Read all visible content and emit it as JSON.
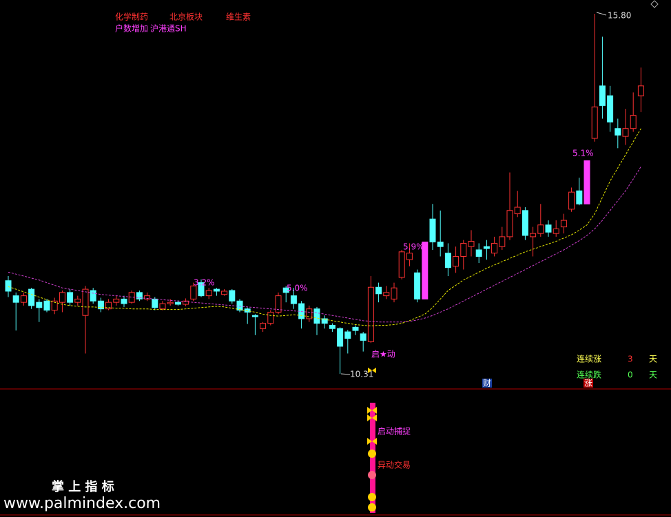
{
  "chart_data": {
    "type": "candlestick",
    "tags": [
      "化学制药",
      "北京板块",
      "维生素"
    ],
    "tags2": [
      "户数增加",
      "沪港通SH"
    ],
    "high_label": "15.80",
    "low_label": "10.31",
    "annotations": [
      "3.2%",
      "5.0%",
      "5.9%",
      "5.1%"
    ],
    "start_label": "启★动",
    "signals": [
      "启动捕捉",
      "异动交易"
    ],
    "streak_up": {
      "label": "连续涨",
      "value": 3,
      "unit": "天"
    },
    "streak_down": {
      "label": "连续跌",
      "value": 0,
      "unit": "天"
    },
    "badges": [
      "财",
      "涨"
    ],
    "watermark": [
      "掌 上 指 标",
      "www.palmindex.com"
    ],
    "ylim": [
      10.31,
      15.8
    ],
    "up_color": "#ff3232",
    "down_color": "#54ffff",
    "limit_color": "#ff40ff",
    "open": [
      11.73,
      11.5,
      11.4,
      11.6,
      11.4,
      11.42,
      11.28,
      11.4,
      11.55,
      11.4,
      11.2,
      11.58,
      11.42,
      11.3,
      11.4,
      11.45,
      11.4,
      11.55,
      11.45,
      11.45,
      11.3,
      11.38,
      11.4,
      11.37,
      11.45,
      11.7,
      11.5,
      11.6,
      11.52,
      11.58,
      11.42,
      11.3,
      11.2,
      11.0,
      11.08,
      11.25,
      11.62,
      11.5,
      11.38,
      11.15,
      11.3,
      11.15,
      11.05,
      11.0,
      10.95,
      11.02,
      10.92,
      10.8,
      11.63,
      11.5,
      11.45,
      11.78,
      12.05,
      11.85,
      11.45,
      12.67,
      12.32,
      12.15,
      11.95,
      12.1,
      12.25,
      12.2,
      12.25,
      12.15,
      12.25,
      12.4,
      12.75,
      12.8,
      12.4,
      12.45,
      12.58,
      12.45,
      12.55,
      12.82,
      13.1,
      12.9,
      13.9,
      14.7,
      14.55,
      14.05,
      13.93,
      14.05,
      14.55
    ],
    "close": [
      11.57,
      11.4,
      11.5,
      11.35,
      11.32,
      11.28,
      11.42,
      11.55,
      11.4,
      11.45,
      11.6,
      11.42,
      11.3,
      11.4,
      11.45,
      11.38,
      11.55,
      11.45,
      11.5,
      11.32,
      11.38,
      11.4,
      11.37,
      11.42,
      11.65,
      11.5,
      11.58,
      11.57,
      11.57,
      11.42,
      11.28,
      11.25,
      11.18,
      11.08,
      11.25,
      11.5,
      11.55,
      11.38,
      11.15,
      11.3,
      11.08,
      11.08,
      11.0,
      10.73,
      10.85,
      10.97,
      10.82,
      11.63,
      11.53,
      11.55,
      11.62,
      12.17,
      12.15,
      11.45,
      12.32,
      12.32,
      12.25,
      11.93,
      12.1,
      12.3,
      12.33,
      12.1,
      12.22,
      12.3,
      12.4,
      12.8,
      12.85,
      12.42,
      12.45,
      12.58,
      12.47,
      12.52,
      12.65,
      13.08,
      12.9,
      13.56,
      14.38,
      14.4,
      14.15,
      13.95,
      14.05,
      14.25,
      14.7
    ],
    "high": [
      11.8,
      11.55,
      11.55,
      11.62,
      11.45,
      11.45,
      11.47,
      11.58,
      11.6,
      11.5,
      11.65,
      11.62,
      11.47,
      11.45,
      11.5,
      11.5,
      11.58,
      11.58,
      11.55,
      11.48,
      11.42,
      11.45,
      11.43,
      11.46,
      11.7,
      11.75,
      11.62,
      11.62,
      11.6,
      11.6,
      11.45,
      11.32,
      11.22,
      11.1,
      11.28,
      11.55,
      11.65,
      11.62,
      11.42,
      11.35,
      11.33,
      11.2,
      11.08,
      11.02,
      10.98,
      11.05,
      10.95,
      11.8,
      11.7,
      11.65,
      11.7,
      12.2,
      12.3,
      11.9,
      12.32,
      12.9,
      12.8,
      12.3,
      12.25,
      12.35,
      12.5,
      12.3,
      12.35,
      12.4,
      12.55,
      13.38,
      13.1,
      12.85,
      12.55,
      12.9,
      12.65,
      12.65,
      12.75,
      13.15,
      13.3,
      13.56,
      15.8,
      15.45,
      14.7,
      14.2,
      14.35,
      14.6,
      14.98
    ],
    "low": [
      11.48,
      10.97,
      11.35,
      11.3,
      11.1,
      11.25,
      11.22,
      11.25,
      11.35,
      11.35,
      10.62,
      11.38,
      11.25,
      11.28,
      11.35,
      11.33,
      11.38,
      11.42,
      11.42,
      11.28,
      11.28,
      11.35,
      11.35,
      11.34,
      11.42,
      11.48,
      11.45,
      11.5,
      11.5,
      11.38,
      11.25,
      11.07,
      10.9,
      10.95,
      11.05,
      11.22,
      11.4,
      11.3,
      11.0,
      11.1,
      10.9,
      11.0,
      10.95,
      10.31,
      10.62,
      10.9,
      10.65,
      10.78,
      11.4,
      11.45,
      11.4,
      11.75,
      11.95,
      11.4,
      11.45,
      12.2,
      12.1,
      11.8,
      11.85,
      11.9,
      12.1,
      12.0,
      12.05,
      12.1,
      12.2,
      12.35,
      12.7,
      12.35,
      12.1,
      12.4,
      12.4,
      12.4,
      12.45,
      12.78,
      12.88,
      12.9,
      13.85,
      14.2,
      14.0,
      13.75,
      13.8,
      14.0,
      14.3
    ],
    "series": [
      {
        "color": "#e6e600",
        "values": [
          11.64,
          11.6,
          11.56,
          11.52,
          11.48,
          11.44,
          11.4,
          11.37,
          11.35,
          11.34,
          11.33,
          11.33,
          11.32,
          11.32,
          11.31,
          11.31,
          11.3,
          11.3,
          11.3,
          11.29,
          11.29,
          11.29,
          11.29,
          11.3,
          11.31,
          11.32,
          11.33,
          11.34,
          11.33,
          11.31,
          11.29,
          11.27,
          11.25,
          11.22,
          11.2,
          11.19,
          11.2,
          11.21,
          11.2,
          11.18,
          11.16,
          11.14,
          11.12,
          11.1,
          11.08,
          11.06,
          11.05,
          11.04,
          11.05,
          11.05,
          11.06,
          11.08,
          11.12,
          11.17,
          11.22,
          11.32,
          11.45,
          11.58,
          11.66,
          11.74,
          11.8,
          11.86,
          11.92,
          11.97,
          12.02,
          12.07,
          12.12,
          12.17,
          12.21,
          12.25,
          12.29,
          12.33,
          12.38,
          12.43,
          12.5,
          12.58,
          12.75,
          13.0,
          13.25,
          13.45,
          13.65,
          13.85,
          14.05
        ]
      },
      {
        "color": "#d040d0",
        "values": [
          11.86,
          11.83,
          11.8,
          11.77,
          11.74,
          11.7,
          11.66,
          11.62,
          11.6,
          11.58,
          11.56,
          11.54,
          11.52,
          11.51,
          11.5,
          11.49,
          11.48,
          11.47,
          11.46,
          11.45,
          11.44,
          11.43,
          11.42,
          11.41,
          11.4,
          11.39,
          11.38,
          11.37,
          11.36,
          11.35,
          11.34,
          11.33,
          11.32,
          11.31,
          11.3,
          11.29,
          11.28,
          11.27,
          11.26,
          11.25,
          11.24,
          11.22,
          11.2,
          11.18,
          11.16,
          11.14,
          11.12,
          11.11,
          11.1,
          11.1,
          11.1,
          11.1,
          11.11,
          11.13,
          11.16,
          11.2,
          11.25,
          11.3,
          11.36,
          11.42,
          11.48,
          11.54,
          11.6,
          11.66,
          11.72,
          11.78,
          11.84,
          11.9,
          11.96,
          12.02,
          12.08,
          12.14,
          12.2,
          12.27,
          12.34,
          12.42,
          12.52,
          12.65,
          12.8,
          12.95,
          13.1,
          13.28,
          13.47
        ]
      }
    ]
  }
}
